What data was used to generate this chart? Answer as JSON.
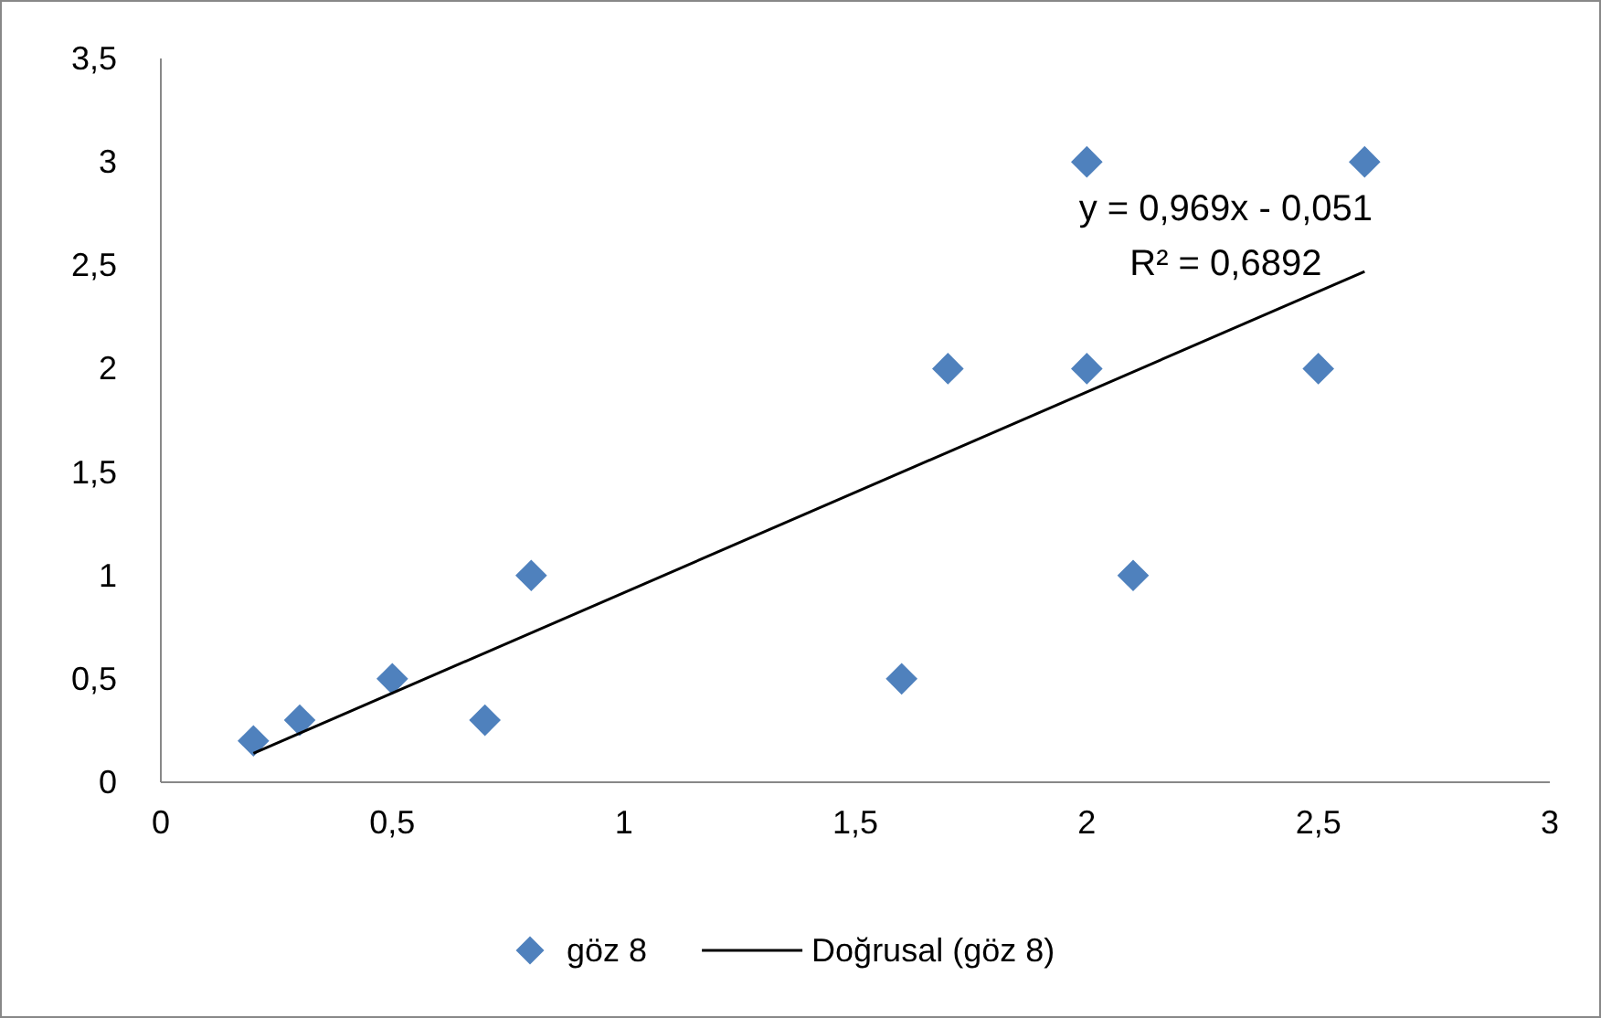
{
  "chart_data": {
    "type": "scatter",
    "xlim": [
      0,
      3
    ],
    "ylim": [
      0,
      3.5
    ],
    "xticks": [
      0,
      {
        "value": 0.5,
        "label": "0,5"
      },
      1,
      {
        "value": 1.5,
        "label": "1,5"
      },
      2,
      {
        "value": 2.5,
        "label": "2,5"
      },
      3
    ],
    "yticks": [
      0,
      {
        "value": 0.5,
        "label": "0,5"
      },
      1,
      {
        "value": 1.5,
        "label": "1,5"
      },
      2,
      {
        "value": 2.5,
        "label": "2,5"
      },
      3,
      {
        "value": 3.5,
        "label": "3,5"
      }
    ],
    "grid": false,
    "legend": "bottom",
    "annotations": [
      "y = 0,969x - 0,051",
      "R² = 0,6892"
    ],
    "series": [
      {
        "name": "göz 8",
        "type": "scatter",
        "marker": "diamond",
        "color": "#4f81bd",
        "x": [
          0.2,
          0.3,
          0.5,
          0.7,
          0.8,
          1.6,
          1.7,
          2,
          2,
          2.1,
          2.5,
          2.6
        ],
        "values": [
          0.2,
          0.3,
          0.5,
          0.3,
          1,
          0.5,
          2,
          3,
          2,
          1,
          2,
          3
        ]
      },
      {
        "name": "Doğrusal (göz 8)",
        "type": "line",
        "color": "#000000",
        "line_style": "solid",
        "x": [
          0.2,
          2.6
        ],
        "values": [
          0.14,
          2.47
        ]
      }
    ]
  }
}
